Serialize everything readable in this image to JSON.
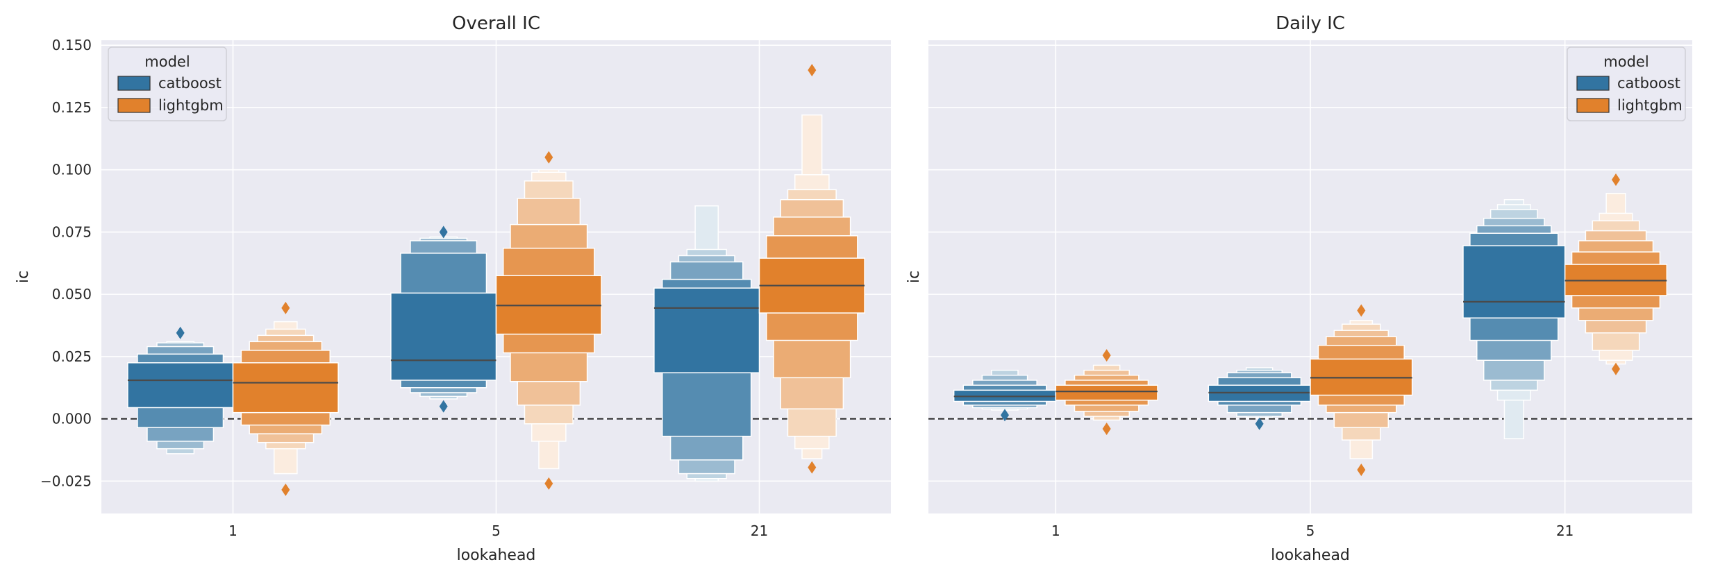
{
  "chart_data": [
    {
      "type": "boxen",
      "title": "Overall IC",
      "xlabel": "lookahead",
      "ylabel": "ic",
      "categories": [
        "1",
        "5",
        "21"
      ],
      "ylim": [
        -0.038,
        0.152
      ],
      "yticks": [
        -0.025,
        0.0,
        0.025,
        0.05,
        0.075,
        0.1,
        0.125,
        0.15
      ],
      "ytick_labels": [
        "−0.025",
        "0.000",
        "0.025",
        "0.050",
        "0.075",
        "0.100",
        "0.125",
        "0.150"
      ],
      "reference_line": 0.0,
      "grid": true,
      "legend": {
        "title": "model",
        "position": "top-left",
        "entries": [
          "catboost",
          "lightgbm"
        ]
      },
      "series": [
        {
          "name": "catboost",
          "color": "#3274a1",
          "boxes": [
            {
              "category": "1",
              "median": 0.0155,
              "levels": [
                [
                  0.0045,
                  0.0225
                ],
                [
                  -0.0035,
                  0.026
                ],
                [
                  -0.009,
                  0.029
                ],
                [
                  -0.012,
                  0.0305
                ],
                [
                  -0.014,
                  0.031
                ]
              ],
              "outliers": [
                0.0345
              ]
            },
            {
              "category": "5",
              "median": 0.0235,
              "levels": [
                [
                  0.0155,
                  0.0505
                ],
                [
                  0.0125,
                  0.0665
                ],
                [
                  0.0105,
                  0.0715
                ],
                [
                  0.009,
                  0.0725
                ],
                [
                  0.008,
                  0.073
                ]
              ],
              "outliers": [
                0.005,
                0.075
              ]
            },
            {
              "category": "21",
              "median": 0.0445,
              "levels": [
                [
                  0.0185,
                  0.0525
                ],
                [
                  -0.007,
                  0.056
                ],
                [
                  -0.0165,
                  0.063
                ],
                [
                  -0.022,
                  0.0655
                ],
                [
                  -0.024,
                  0.068
                ],
                [
                  -0.025,
                  0.0855
                ]
              ],
              "outliers": []
            }
          ]
        },
        {
          "name": "lightgbm",
          "color": "#e1812c",
          "boxes": [
            {
              "category": "1",
              "median": 0.0145,
              "levels": [
                [
                  0.0025,
                  0.0225
                ],
                [
                  -0.0025,
                  0.0275
                ],
                [
                  -0.006,
                  0.031
                ],
                [
                  -0.0095,
                  0.0335
                ],
                [
                  -0.012,
                  0.036
                ],
                [
                  -0.022,
                  0.039
                ]
              ],
              "outliers": [
                -0.0285,
                0.0445
              ]
            },
            {
              "category": "5",
              "median": 0.0455,
              "levels": [
                [
                  0.034,
                  0.0575
                ],
                [
                  0.0265,
                  0.0685
                ],
                [
                  0.015,
                  0.078
                ],
                [
                  0.0055,
                  0.0885
                ],
                [
                  -0.002,
                  0.0955
                ],
                [
                  -0.009,
                  0.099
                ],
                [
                  -0.02,
                  0.1
                ]
              ],
              "outliers": [
                -0.026,
                0.105
              ]
            },
            {
              "category": "21",
              "median": 0.0535,
              "levels": [
                [
                  0.0425,
                  0.0645
                ],
                [
                  0.0315,
                  0.0735
                ],
                [
                  0.0165,
                  0.081
                ],
                [
                  0.004,
                  0.088
                ],
                [
                  -0.007,
                  0.092
                ],
                [
                  -0.012,
                  0.098
                ],
                [
                  -0.016,
                  0.122
                ]
              ],
              "outliers": [
                -0.0195,
                0.14
              ]
            }
          ]
        }
      ]
    },
    {
      "type": "boxen",
      "title": "Daily IC",
      "xlabel": "lookahead",
      "ylabel": "ic",
      "categories": [
        "1",
        "5",
        "21"
      ],
      "ylim": [
        -0.038,
        0.152
      ],
      "yticks": [
        -0.025,
        0.0,
        0.025,
        0.05,
        0.075,
        0.1,
        0.125,
        0.15
      ],
      "ytick_labels": [],
      "reference_line": 0.0,
      "grid": true,
      "legend": {
        "title": "model",
        "position": "top-right",
        "entries": [
          "catboost",
          "lightgbm"
        ]
      },
      "series": [
        {
          "name": "catboost",
          "color": "#3274a1",
          "boxes": [
            {
              "category": "1",
              "median": 0.009,
              "levels": [
                [
                  0.007,
                  0.0115
                ],
                [
                  0.0055,
                  0.0135
                ],
                [
                  0.0045,
                  0.0155
                ],
                [
                  0.004,
                  0.0175
                ],
                [
                  0.0035,
                  0.0195
                ]
              ],
              "outliers": [
                0.0015
              ]
            },
            {
              "category": "5",
              "median": 0.0105,
              "levels": [
                [
                  0.007,
                  0.0135
                ],
                [
                  0.0055,
                  0.0165
                ],
                [
                  0.0025,
                  0.0185
                ],
                [
                  0.001,
                  0.0195
                ],
                [
                  0.0005,
                  0.0205
                ]
              ],
              "outliers": [
                -0.002
              ]
            },
            {
              "category": "21",
              "median": 0.047,
              "levels": [
                [
                  0.0405,
                  0.0695
                ],
                [
                  0.0315,
                  0.0745
                ],
                [
                  0.0235,
                  0.0775
                ],
                [
                  0.0155,
                  0.0805
                ],
                [
                  0.0115,
                  0.084
                ],
                [
                  0.0075,
                  0.086
                ],
                [
                  -0.008,
                  0.088
                ]
              ],
              "outliers": []
            }
          ]
        },
        {
          "name": "lightgbm",
          "color": "#e1812c",
          "boxes": [
            {
              "category": "1",
              "median": 0.011,
              "levels": [
                [
                  0.0075,
                  0.0135
                ],
                [
                  0.0055,
                  0.0155
                ],
                [
                  0.003,
                  0.0175
                ],
                [
                  0.001,
                  0.0195
                ],
                [
                  -0.0005,
                  0.0215
                ]
              ],
              "outliers": [
                -0.004,
                0.0255
              ]
            },
            {
              "category": "5",
              "median": 0.0165,
              "levels": [
                [
                  0.0095,
                  0.024
                ],
                [
                  0.0055,
                  0.0295
                ],
                [
                  0.0025,
                  0.033
                ],
                [
                  -0.0035,
                  0.0355
                ],
                [
                  -0.0085,
                  0.038
                ],
                [
                  -0.016,
                  0.0395
                ]
              ],
              "outliers": [
                -0.0205,
                0.0435
              ]
            },
            {
              "category": "21",
              "median": 0.0555,
              "levels": [
                [
                  0.0495,
                  0.062
                ],
                [
                  0.0445,
                  0.067
                ],
                [
                  0.0395,
                  0.0715
                ],
                [
                  0.0345,
                  0.0755
                ],
                [
                  0.0275,
                  0.0795
                ],
                [
                  0.0235,
                  0.0825
                ],
                [
                  0.022,
                  0.0905
                ]
              ],
              "outliers": [
                0.02,
                0.096
              ]
            }
          ]
        }
      ]
    }
  ]
}
